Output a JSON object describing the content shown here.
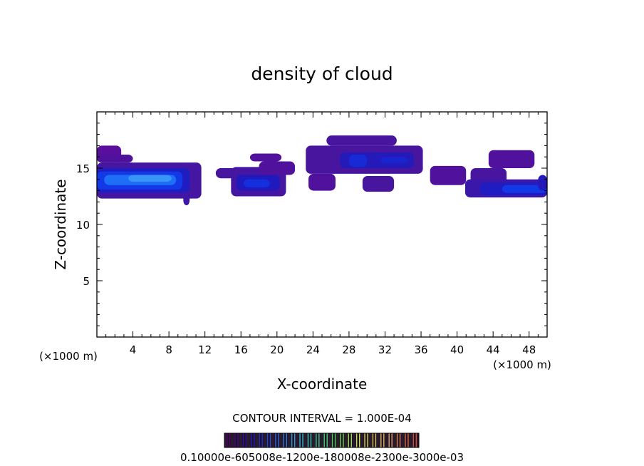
{
  "chart_data": {
    "type": "heatmap",
    "title": "density of cloud",
    "xlabel": "X-coordinate",
    "ylabel": "Z-coordinate",
    "x_unit_left": "(×1000 m)",
    "x_unit_right": "(×1000 m)",
    "xlim": [
      0,
      50
    ],
    "ylim": [
      0,
      20
    ],
    "x_ticks": [
      4,
      8,
      12,
      16,
      20,
      24,
      28,
      32,
      36,
      40,
      44,
      48
    ],
    "y_ticks": [
      5,
      10,
      15
    ],
    "x_tick_labels": [
      "4",
      "8",
      "12",
      "16",
      "20",
      "24",
      "28",
      "32",
      "36",
      "40",
      "44",
      "48"
    ],
    "y_tick_labels": [
      "5",
      "10",
      "15"
    ],
    "contour_interval_text": "CONTOUR INTERVAL = 1.000E-04",
    "colorbar_labels_text": "0.10000e-605008e-1200e-180008e-2300e-3000e-03",
    "colorbar_levels": 24,
    "colorbar_colors": [
      "#5b006e",
      "#1c1cc8",
      "#2a78e6",
      "#38d2c0",
      "#4cd24a",
      "#d8e048",
      "#e8b060",
      "#d84a2a"
    ],
    "grid": false,
    "cells": [
      {
        "x0": 0,
        "x1": 2.7,
        "z0": 15.5,
        "z1": 17.0,
        "v": 0.4
      },
      {
        "x0": 0,
        "x1": 4.0,
        "z0": 15.5,
        "z1": 16.2,
        "v": 0.5
      },
      {
        "x0": 0,
        "x1": 11.6,
        "z0": 12.3,
        "z1": 15.5,
        "v": 0.7
      },
      {
        "x0": 0,
        "x1": 10.3,
        "z0": 12.8,
        "z1": 15.0,
        "v": 1.6
      },
      {
        "x0": 0,
        "x1": 9.5,
        "z0": 13.1,
        "z1": 14.7,
        "v": 2.6
      },
      {
        "x0": 0.8,
        "x1": 8.8,
        "z0": 13.5,
        "z1": 14.4,
        "v": 3.6
      },
      {
        "x0": 3.5,
        "x1": 8.3,
        "z0": 13.8,
        "z1": 14.4,
        "v": 4.2
      },
      {
        "x0": 9.6,
        "x1": 10.3,
        "z0": 11.7,
        "z1": 12.9,
        "v": 0.8
      },
      {
        "x0": 13.2,
        "x1": 17.0,
        "z0": 14.1,
        "z1": 15.0,
        "v": 0.6
      },
      {
        "x0": 14.9,
        "x1": 21.0,
        "z0": 12.5,
        "z1": 15.1,
        "v": 0.7
      },
      {
        "x0": 15.5,
        "x1": 20.3,
        "z0": 13.0,
        "z1": 14.4,
        "v": 1.5
      },
      {
        "x0": 16.3,
        "x1": 19.2,
        "z0": 13.3,
        "z1": 14.0,
        "v": 2.3
      },
      {
        "x0": 18.0,
        "x1": 22.0,
        "z0": 14.4,
        "z1": 15.6,
        "v": 0.5
      },
      {
        "x0": 17.0,
        "x1": 20.5,
        "z0": 15.6,
        "z1": 16.3,
        "v": 0.5
      },
      {
        "x0": 23.2,
        "x1": 36.2,
        "z0": 14.5,
        "z1": 17.0,
        "v": 0.6
      },
      {
        "x0": 25.5,
        "x1": 33.3,
        "z0": 17.0,
        "z1": 17.9,
        "v": 0.6
      },
      {
        "x0": 23.5,
        "x1": 26.5,
        "z0": 13.0,
        "z1": 14.5,
        "v": 0.5
      },
      {
        "x0": 29.5,
        "x1": 33.0,
        "z0": 12.9,
        "z1": 14.3,
        "v": 0.6
      },
      {
        "x0": 27.0,
        "x1": 35.2,
        "z0": 15.0,
        "z1": 16.4,
        "v": 1.4
      },
      {
        "x0": 28.0,
        "x1": 30.0,
        "z0": 15.1,
        "z1": 16.2,
        "v": 2.1
      },
      {
        "x0": 31.5,
        "x1": 34.5,
        "z0": 15.4,
        "z1": 16.0,
        "v": 1.9
      },
      {
        "x0": 37.0,
        "x1": 41.0,
        "z0": 13.5,
        "z1": 15.2,
        "v": 0.5
      },
      {
        "x0": 41.5,
        "x1": 45.5,
        "z0": 13.3,
        "z1": 15.0,
        "v": 0.6
      },
      {
        "x0": 43.5,
        "x1": 48.6,
        "z0": 15.0,
        "z1": 16.6,
        "v": 0.5
      },
      {
        "x0": 40.9,
        "x1": 50.0,
        "z0": 12.4,
        "z1": 14.0,
        "v": 0.9
      },
      {
        "x0": 42.5,
        "x1": 50.0,
        "z0": 12.6,
        "z1": 13.7,
        "v": 1.6
      },
      {
        "x0": 45.0,
        "x1": 50.0,
        "z0": 12.8,
        "z1": 13.5,
        "v": 2.6
      },
      {
        "x0": 49.0,
        "x1": 50.0,
        "z0": 13.0,
        "z1": 14.4,
        "v": 1.4
      }
    ]
  }
}
